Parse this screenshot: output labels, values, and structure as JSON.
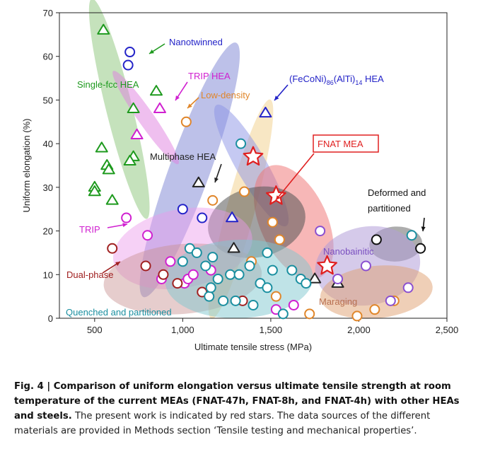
{
  "chart_data": {
    "type": "scatter",
    "xlabel": "Ultimate tensile stress (MPa)",
    "ylabel": "Uniform elongation (%)",
    "xlim": [
      300,
      2500
    ],
    "ylim": [
      0,
      70
    ],
    "x_ticks": [
      500,
      1000,
      1500,
      2000,
      2500
    ],
    "x_tick_labels": [
      "500",
      "1,000",
      "1,500",
      "2,000",
      "2,500"
    ],
    "y_ticks": [
      0,
      10,
      20,
      30,
      40,
      50,
      60,
      70
    ],
    "y_tick_labels": [
      "0",
      "10",
      "20",
      "30",
      "40",
      "50",
      "60",
      "70"
    ],
    "grid": false,
    "regions": [
      {
        "label": "Single-fcc HEA",
        "color": "#1e9a1e",
        "fill": "#7fbf6a",
        "opacity": 0.45,
        "ellipse": {
          "cx": 640,
          "cy": 48,
          "rx": 75,
          "ry": 26,
          "rotate": -14
        }
      },
      {
        "label": "Nanotwinned",
        "color": "#2323c8",
        "fill": "#7b83d4",
        "opacity": 0.5,
        "ellipse": {
          "cx": 1040,
          "cy": 34,
          "rx": 115,
          "ry": 31,
          "rotate": 20
        }
      },
      {
        "label": "TRIP HEA",
        "color": "#d020d0",
        "fill": "#e07fe0",
        "opacity": 0.5,
        "ellipse": {
          "cx": 790,
          "cy": 46,
          "rx": 45,
          "ry": 13,
          "rotate": -35
        }
      },
      {
        "label": "Low-density",
        "color": "#e0862a",
        "fill": "#f1d08a",
        "opacity": 0.5,
        "ellipse": {
          "cx": 1330,
          "cy": 25,
          "rx": 80,
          "ry": 26,
          "rotate": 15
        }
      },
      {
        "label": "(FeCoNi)86(AlTi)14 HEA",
        "color": "#2323c8",
        "fill": "#8b94e6",
        "opacity": 0.5,
        "ellipse": {
          "cx": 1390,
          "cy": 35,
          "rx": 85,
          "ry": 16,
          "rotate": -30
        }
      },
      {
        "label": "FNAT MEA",
        "color": "#e02020",
        "fill": "#f07070",
        "opacity": 0.5,
        "ellipse": {
          "cx": 1630,
          "cy": 22,
          "rx": 190,
          "ry": 14,
          "rotate": -25
        }
      },
      {
        "label": "Multiphase HEA",
        "color": "#222222",
        "fill": "#555555",
        "opacity": 0.55,
        "ellipse": {
          "cx": 1420,
          "cy": 22,
          "rx": 280,
          "ry": 8,
          "rotate": -13
        }
      },
      {
        "label": "Deformed and partitioned",
        "color": "#111111",
        "fill": "#777777",
        "opacity": 0.6,
        "ellipse": {
          "cx": 2210,
          "cy": 17,
          "rx": 150,
          "ry": 4,
          "rotate": -3
        }
      },
      {
        "label": "Nanobainitic",
        "color": "#7a4fc0",
        "fill": "#b39ed8",
        "opacity": 0.55,
        "ellipse": {
          "cx": 2050,
          "cy": 12,
          "rx": 300,
          "ry": 9,
          "rotate": -10
        }
      },
      {
        "label": "TRIP",
        "color": "#d020d0",
        "fill": "#ea9aea",
        "opacity": 0.45,
        "ellipse": {
          "cx": 1000,
          "cy": 16,
          "rx": 400,
          "ry": 9,
          "rotate": -11
        }
      },
      {
        "label": "Dual-phase",
        "color": "#a02020",
        "fill": "#c89090",
        "opacity": 0.45,
        "ellipse": {
          "cx": 1000,
          "cy": 9,
          "rx": 450,
          "ry": 8,
          "rotate": -5
        }
      },
      {
        "label": "Quenched and partitioned",
        "color": "#1a8fa0",
        "fill": "#80c8d0",
        "opacity": 0.5,
        "ellipse": {
          "cx": 1320,
          "cy": 9,
          "rx": 420,
          "ry": 9,
          "rotate": -2
        }
      },
      {
        "label": "Maraging",
        "color": "#d07020",
        "fill": "#e0a070",
        "opacity": 0.5,
        "ellipse": {
          "cx": 2100,
          "cy": 6,
          "rx": 320,
          "ry": 6,
          "rotate": -6
        }
      }
    ],
    "series": [
      {
        "name": "Single-fcc HEA",
        "marker": "triangle",
        "color": "#1e9a1e",
        "points": [
          [
            550,
            66
          ],
          [
            850,
            52
          ],
          [
            720,
            48
          ],
          [
            540,
            39
          ],
          [
            570,
            35
          ],
          [
            580,
            34
          ],
          [
            720,
            37
          ],
          [
            700,
            36
          ],
          [
            500,
            30
          ],
          [
            500,
            29
          ],
          [
            600,
            27
          ]
        ]
      },
      {
        "name": "Nanotwinned",
        "marker": "circle",
        "color": "#2323c8",
        "points": [
          [
            700,
            61
          ],
          [
            690,
            58
          ],
          [
            1000,
            25
          ],
          [
            1110,
            23
          ]
        ]
      },
      {
        "name": "TRIP HEA",
        "marker": "triangle",
        "color": "#d020d0",
        "points": [
          [
            870,
            48
          ],
          [
            740,
            42
          ]
        ]
      },
      {
        "name": "Low-density",
        "marker": "circle",
        "color": "#e0862a",
        "points": [
          [
            1020,
            45
          ],
          [
            1350,
            29
          ],
          [
            1170,
            27
          ],
          [
            1510,
            22
          ],
          [
            1550,
            18
          ],
          [
            1390,
            13
          ],
          [
            1530,
            5
          ],
          [
            1720,
            1
          ],
          [
            1990,
            0.5
          ],
          [
            2090,
            2
          ],
          [
            2200,
            4
          ]
        ]
      },
      {
        "name": "(FeCoNi)86(AlTi)14 HEA",
        "marker": "triangle",
        "color": "#2323c8",
        "points": [
          [
            1470,
            47
          ],
          [
            1280,
            23
          ]
        ]
      },
      {
        "name": "FNAT MEA",
        "marker": "star",
        "color": "#e02020",
        "points": [
          [
            1400,
            37
          ],
          [
            1530,
            28
          ],
          [
            1820,
            12
          ]
        ]
      },
      {
        "name": "Multiphase HEA",
        "marker": "triangle",
        "color": "#222222",
        "points": [
          [
            1090,
            31
          ],
          [
            1290,
            16
          ],
          [
            1750,
            9
          ],
          [
            1880,
            8
          ]
        ]
      },
      {
        "name": "Nanobainitic",
        "marker": "circle",
        "color": "#8a4fd0",
        "points": [
          [
            1780,
            20
          ],
          [
            2040,
            12
          ],
          [
            2280,
            7
          ],
          [
            2180,
            4
          ],
          [
            1880,
            9
          ]
        ]
      },
      {
        "name": "Deformed and partitioned",
        "marker": "circle",
        "color": "#111111",
        "points": [
          [
            2100,
            18
          ],
          [
            2350,
            16
          ]
        ]
      },
      {
        "name": "TRIP",
        "marker": "circle",
        "color": "#d020d0",
        "points": [
          [
            680,
            23
          ],
          [
            800,
            19
          ],
          [
            930,
            13
          ],
          [
            1160,
            11
          ],
          [
            1010,
            8
          ],
          [
            1030,
            9
          ],
          [
            880,
            9
          ],
          [
            1060,
            10
          ],
          [
            1530,
            2
          ],
          [
            1630,
            3
          ]
        ]
      },
      {
        "name": "Dual-phase",
        "marker": "circle",
        "color": "#a02020",
        "points": [
          [
            600,
            16
          ],
          [
            790,
            12
          ],
          [
            890,
            10
          ],
          [
            970,
            8
          ],
          [
            1110,
            6
          ],
          [
            1340,
            4
          ]
        ]
      },
      {
        "name": "Quenched and partitioned",
        "marker": "circle",
        "color": "#1a8fa0",
        "points": [
          [
            1040,
            16
          ],
          [
            1080,
            15
          ],
          [
            1000,
            13
          ],
          [
            1130,
            12
          ],
          [
            1170,
            14
          ],
          [
            1200,
            9
          ],
          [
            1270,
            10
          ],
          [
            1320,
            10
          ],
          [
            1380,
            12
          ],
          [
            1440,
            8
          ],
          [
            1480,
            7
          ],
          [
            1510,
            11
          ],
          [
            1620,
            11
          ],
          [
            1670,
            9
          ],
          [
            1700,
            8
          ],
          [
            1150,
            5
          ],
          [
            1230,
            4
          ],
          [
            1300,
            4
          ],
          [
            1400,
            3
          ],
          [
            1570,
            1
          ],
          [
            2300,
            19
          ],
          [
            1480,
            15
          ],
          [
            1330,
            40
          ],
          [
            1160,
            7
          ]
        ]
      }
    ],
    "annotations": [
      {
        "text": "Single-fcc HEA",
        "color": "#1e9a1e"
      },
      {
        "text": "Nanotwinned",
        "color": "#2323c8"
      },
      {
        "text": "TRIP HEA",
        "color": "#d020d0"
      },
      {
        "text": "Low-density",
        "color": "#e0862a"
      },
      {
        "text": "(FeCoNi)",
        "sub1": "86",
        "mid": "(AlTi)",
        "sub2": "14",
        "tail": " HEA",
        "color": "#2323c8"
      },
      {
        "text": "FNAT MEA",
        "color": "#e02020",
        "boxed": true
      },
      {
        "text": "Multiphase HEA",
        "color": "#222222"
      },
      {
        "text": "Deformed and",
        "text2": "partitioned",
        "color": "#111111"
      },
      {
        "text": "Nanobainitic",
        "color": "#7a4fc0"
      },
      {
        "text": "TRIP",
        "color": "#d020d0"
      },
      {
        "text": "Dual-phase",
        "color": "#a02020"
      },
      {
        "text": "Quenched and partitioned",
        "color": "#1a8fa0"
      },
      {
        "text": "Maraging",
        "color": "#b87050"
      }
    ]
  },
  "caption": {
    "bold": "Fig. 4 | Comparison of uniform elongation versus ultimate tensile strength at room temperature of the current MEAs (FNAT-47h, FNAT-8h, and FNAT-4h) with other HEAs and steels.",
    "rest": " The present work is indicated by red stars. The data sources of the different materials are provided in Methods section ‘Tensile testing and mechanical properties’."
  }
}
